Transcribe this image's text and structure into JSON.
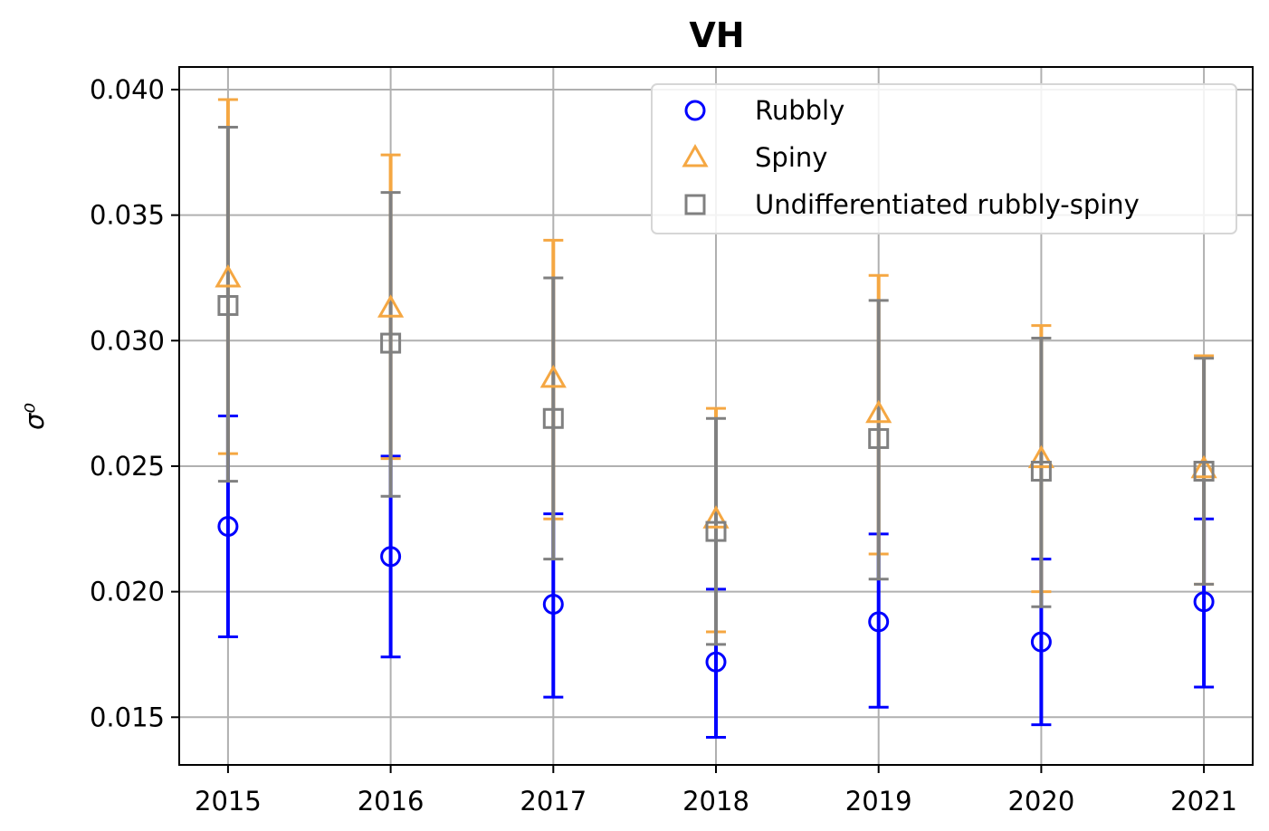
{
  "chart_data": {
    "type": "scatter",
    "title": "VH",
    "xlabel": "",
    "ylabel": "σ⁰",
    "x": [
      2015,
      2016,
      2017,
      2018,
      2019,
      2020,
      2021
    ],
    "xticks": [
      "2015",
      "2016",
      "2017",
      "2018",
      "2019",
      "2020",
      "2021"
    ],
    "xlim": [
      2014.7,
      2021.3
    ],
    "ylim": [
      0.0131,
      0.0409
    ],
    "yticks": [
      "0.015",
      "0.020",
      "0.025",
      "0.030",
      "0.035",
      "0.040"
    ],
    "grid": true,
    "legend_position": "top-right",
    "series": [
      {
        "name": "Rubbly",
        "marker": "circle",
        "color": "#0000ff",
        "values": [
          0.0226,
          0.0214,
          0.0195,
          0.0172,
          0.0188,
          0.018,
          0.0196
        ],
        "err_low": [
          0.0182,
          0.0174,
          0.0158,
          0.0142,
          0.0154,
          0.0147,
          0.0162
        ],
        "err_high": [
          0.027,
          0.0254,
          0.0231,
          0.0201,
          0.0223,
          0.0213,
          0.0229
        ]
      },
      {
        "name": "Spiny",
        "marker": "triangle",
        "color": "#f5a742",
        "values": [
          0.0325,
          0.0313,
          0.0285,
          0.0229,
          0.0271,
          0.0253,
          0.0249
        ],
        "err_low": [
          0.0255,
          0.0253,
          0.0229,
          0.0184,
          0.0215,
          0.02,
          0.0203
        ],
        "err_high": [
          0.0396,
          0.0374,
          0.034,
          0.0273,
          0.0326,
          0.0306,
          0.0294
        ]
      },
      {
        "name": "Undifferentiated rubbly-spiny",
        "marker": "square",
        "color": "#808080",
        "values": [
          0.0314,
          0.0299,
          0.0269,
          0.0224,
          0.0261,
          0.0248,
          0.0248
        ],
        "err_low": [
          0.0244,
          0.0238,
          0.0213,
          0.0179,
          0.0205,
          0.0194,
          0.0203
        ],
        "err_high": [
          0.0385,
          0.0359,
          0.0325,
          0.0269,
          0.0316,
          0.0301,
          0.0293
        ]
      }
    ]
  }
}
